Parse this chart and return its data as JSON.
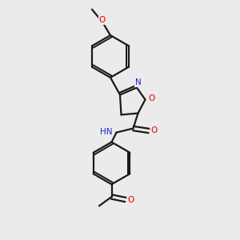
{
  "background_color": "#ebebeb",
  "bond_color": "#1a1a1a",
  "bond_width": 1.6,
  "atom_colors": {
    "O": "#e00000",
    "N": "#2020cc",
    "C": "#1a1a1a"
  },
  "font_size": 7.5,
  "figsize": [
    3.0,
    3.0
  ],
  "dpi": 100,
  "xlim": [
    0,
    10
  ],
  "ylim": [
    0,
    10
  ]
}
